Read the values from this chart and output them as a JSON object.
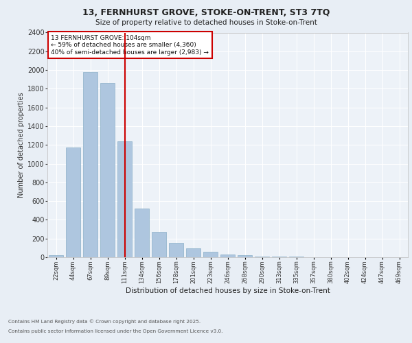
{
  "title_line1": "13, FERNHURST GROVE, STOKE-ON-TRENT, ST3 7TQ",
  "title_line2": "Size of property relative to detached houses in Stoke-on-Trent",
  "xlabel": "Distribution of detached houses by size in Stoke-on-Trent",
  "ylabel": "Number of detached properties",
  "categories": [
    "22sqm",
    "44sqm",
    "67sqm",
    "89sqm",
    "111sqm",
    "134sqm",
    "156sqm",
    "178sqm",
    "201sqm",
    "223sqm",
    "246sqm",
    "268sqm",
    "290sqm",
    "313sqm",
    "335sqm",
    "357sqm",
    "380sqm",
    "402sqm",
    "424sqm",
    "447sqm",
    "469sqm"
  ],
  "values": [
    25,
    1170,
    1980,
    1860,
    1240,
    520,
    270,
    155,
    95,
    55,
    30,
    25,
    10,
    8,
    5,
    3,
    3,
    2,
    1,
    1,
    1
  ],
  "bar_color": "#aec6df",
  "bar_edge_color": "#8aafc8",
  "highlight_index": 4,
  "highlight_color": "#cc0000",
  "annotation_line1": "13 FERNHURST GROVE: 104sqm",
  "annotation_line2": "← 59% of detached houses are smaller (4,360)",
  "annotation_line3": "40% of semi-detached houses are larger (2,983) →",
  "annotation_box_color": "#ffffff",
  "annotation_box_edge": "#cc0000",
  "ylim": [
    0,
    2400
  ],
  "yticks": [
    0,
    200,
    400,
    600,
    800,
    1000,
    1200,
    1400,
    1600,
    1800,
    2000,
    2200,
    2400
  ],
  "footer_line1": "Contains HM Land Registry data © Crown copyright and database right 2025.",
  "footer_line2": "Contains public sector information licensed under the Open Government Licence v3.0.",
  "bg_color": "#e8eef5",
  "plot_bg_color": "#edf2f8"
}
